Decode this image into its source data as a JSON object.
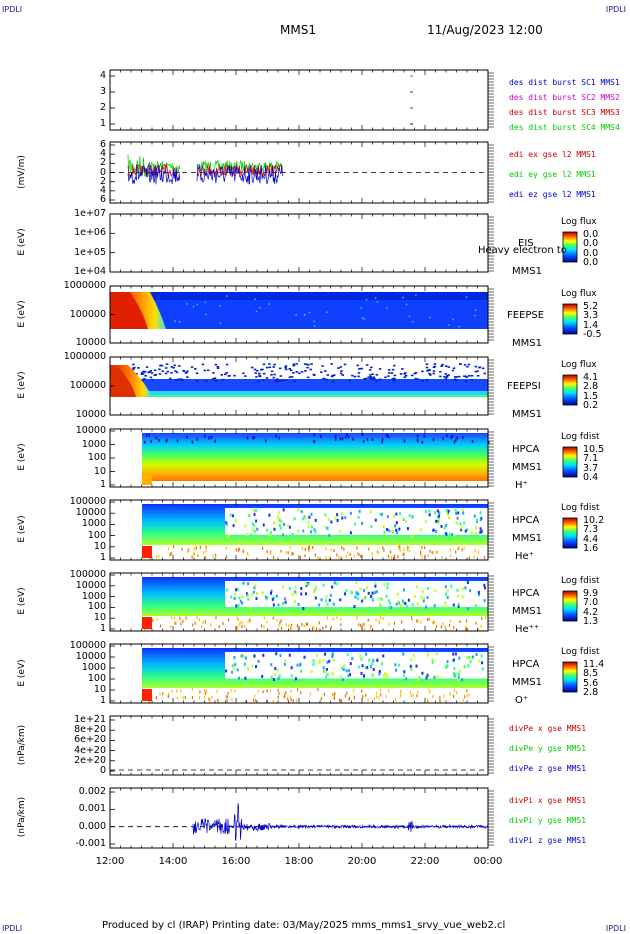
{
  "corners": {
    "tl": "IPDLI",
    "tr": "IPDLI",
    "bl": "IPDLI",
    "br": "IPDLI"
  },
  "header": {
    "mission": "MMS1",
    "datetime": "11/Aug/2023 12:00"
  },
  "footer": {
    "text": "Produced by cl (IRAP)    Printing date: 03/May/2025    mms_mms1_srvy_vue_web2.cl"
  },
  "colors": {
    "c1": "#0000cc",
    "c2": "#cc00cc",
    "c3": "#cc0000",
    "c4": "#00cc00"
  },
  "chart_data": [
    {
      "type": "line",
      "panel": "availability",
      "yticks": [
        "4",
        "3",
        "2",
        "1"
      ],
      "legend": [
        {
          "name": "des dist burst SC1 MMS1",
          "color": "#0000cc"
        },
        {
          "name": "des dist burst SC2 MMS2",
          "color": "#cc00cc"
        },
        {
          "name": "des dist burst SC3 MMS3",
          "color": "#cc0000"
        },
        {
          "name": "des dist burst SC4 MMS4",
          "color": "#00cc00"
        }
      ]
    },
    {
      "type": "line",
      "panel": "edi",
      "ylabel": "(mV/m)",
      "yticks": [
        "6",
        "4",
        "2",
        "0",
        "2",
        "4",
        "6"
      ],
      "legend": [
        {
          "name": "edi ex gse l2 MMS1",
          "color": "#cc0000"
        },
        {
          "name": "edi ey gse l2 MMS1",
          "color": "#00cc00"
        },
        {
          "name": "edi ez gse l2 MMS1",
          "color": "#0000cc"
        }
      ]
    },
    {
      "type": "heatmap",
      "panel": "eis",
      "ylabel": "E (eV)",
      "yticks": [
        "1e+07",
        "1e+06",
        "1e+05",
        "1e+04"
      ],
      "labels": [
        "EIS",
        "MMS1"
      ],
      "overlay": "Heavy electron to",
      "cbar_title": "Log flux",
      "cbar_ticks": [
        "0.0",
        "0.0",
        "0.0",
        "0.0"
      ]
    },
    {
      "type": "heatmap",
      "panel": "feepse",
      "ylabel": "E (eV)",
      "yticks": [
        "1000000",
        "100000",
        "10000"
      ],
      "labels": [
        "FEEPSE",
        "MMS1"
      ],
      "cbar_title": "Log flux",
      "cbar_ticks": [
        "5.2",
        "3.3",
        "1.4",
        "-0.5"
      ]
    },
    {
      "type": "heatmap",
      "panel": "feepsi",
      "ylabel": "E (eV)",
      "yticks": [
        "1000000",
        "100000",
        "10000"
      ],
      "labels": [
        "FEEPSI",
        "MMS1"
      ],
      "cbar_title": "Log flux",
      "cbar_ticks": [
        "4.1",
        "2.8",
        "1.5",
        "0.2"
      ]
    },
    {
      "type": "heatmap",
      "panel": "hpca_h",
      "ylabel": "E (eV)",
      "yticks": [
        "10000",
        "1000",
        "100",
        "10",
        "1"
      ],
      "labels": [
        "HPCA",
        "MMS1",
        "H⁺"
      ],
      "cbar_title": "Log fdist",
      "cbar_ticks": [
        "10.5",
        "7.1",
        "3.7",
        "0.4"
      ]
    },
    {
      "type": "heatmap",
      "panel": "hpca_he",
      "ylabel": "E (eV)",
      "yticks": [
        "100000",
        "10000",
        "1000",
        "100",
        "10",
        "1"
      ],
      "labels": [
        "HPCA",
        "MMS1",
        "He⁺"
      ],
      "cbar_title": "Log fdist",
      "cbar_ticks": [
        "10.2",
        "7.3",
        "4.4",
        "1.6"
      ]
    },
    {
      "type": "heatmap",
      "panel": "hpca_hepp",
      "ylabel": "E (eV)",
      "yticks": [
        "100000",
        "10000",
        "1000",
        "100",
        "10",
        "1"
      ],
      "labels": [
        "HPCA",
        "MMS1",
        "He⁺⁺"
      ],
      "cbar_title": "Log fdist",
      "cbar_ticks": [
        "9.9",
        "7.0",
        "4.2",
        "1.3"
      ]
    },
    {
      "type": "heatmap",
      "panel": "hpca_o",
      "ylabel": "E (eV)",
      "yticks": [
        "100000",
        "10000",
        "1000",
        "100",
        "10",
        "1"
      ],
      "labels": [
        "HPCA",
        "MMS1",
        "O⁺"
      ],
      "cbar_title": "Log fdist",
      "cbar_ticks": [
        "11.4",
        "8.5",
        "5.6",
        "2.8"
      ]
    },
    {
      "type": "line",
      "panel": "divpe",
      "ylabel": "(nPa/km)",
      "yticks": [
        "1e+21",
        "8e+20",
        "6e+20",
        "4e+20",
        "2e+20",
        "0"
      ],
      "legend": [
        {
          "name": "divPe x gse MMS1",
          "color": "#cc0000"
        },
        {
          "name": "divPe y gse MMS1",
          "color": "#00cc00"
        },
        {
          "name": "divPe z gse MMS1",
          "color": "#0000cc"
        }
      ]
    },
    {
      "type": "line",
      "panel": "divpi",
      "ylabel": "(nPa/km)",
      "yticks": [
        "0.002",
        "0.001",
        "0.000",
        "-0.001"
      ],
      "legend": [
        {
          "name": "divPi x gse MMS1",
          "color": "#cc0000"
        },
        {
          "name": "divPi y gse MMS1",
          "color": "#00cc00"
        },
        {
          "name": "divPi z gse MMS1",
          "color": "#0000cc"
        }
      ]
    }
  ],
  "xaxis": {
    "ticks": [
      "12:00",
      "14:00",
      "16:00",
      "18:00",
      "20:00",
      "22:00",
      "00:00"
    ]
  }
}
